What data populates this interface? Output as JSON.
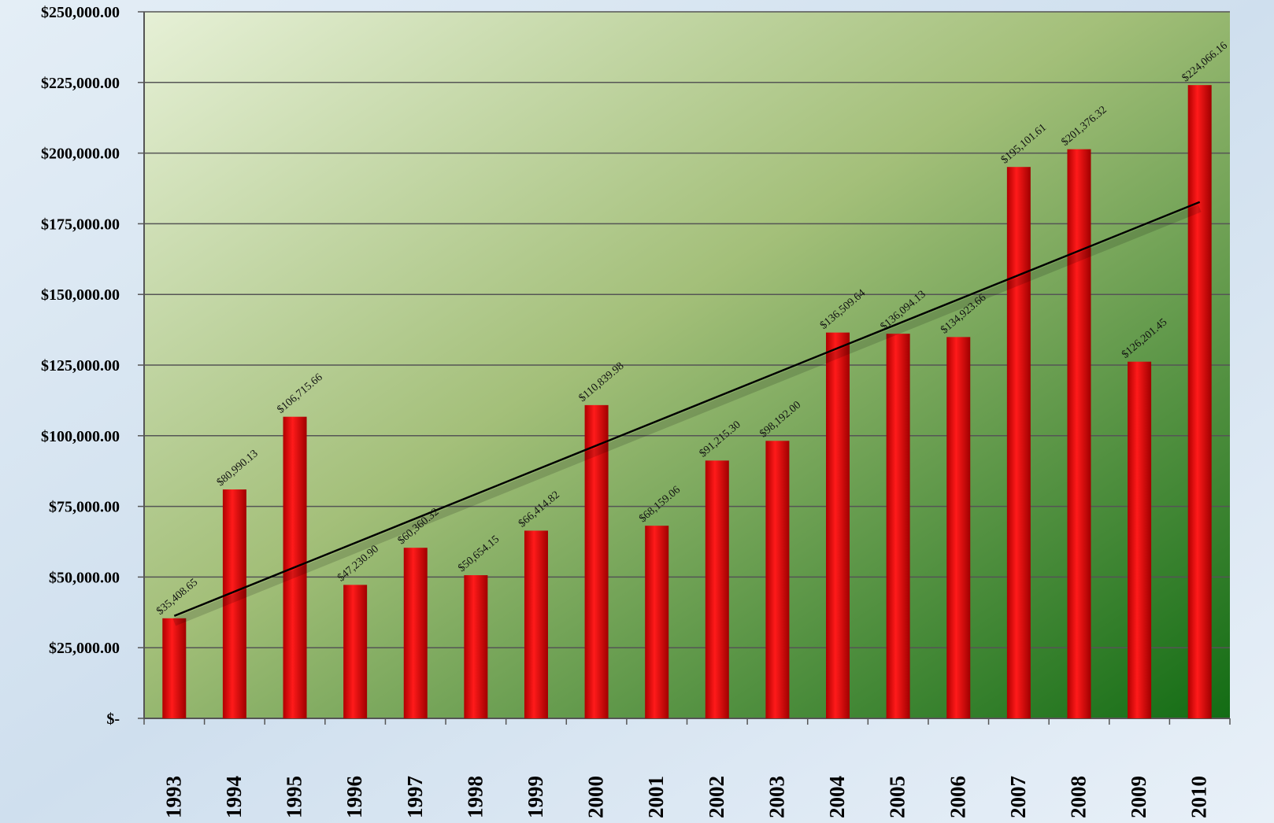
{
  "chart_data": {
    "type": "bar",
    "categories": [
      "1993",
      "1994",
      "1995",
      "1996",
      "1997",
      "1998",
      "1999",
      "2000",
      "2001",
      "2002",
      "2003",
      "2004",
      "2005",
      "2006",
      "2007",
      "2008",
      "2009",
      "2010"
    ],
    "values": [
      35408.65,
      80990.13,
      106715.66,
      47230.9,
      60360.32,
      50654.15,
      66414.82,
      110839.98,
      68159.06,
      91215.3,
      98192.0,
      136509.64,
      136094.13,
      134923.66,
      195101.61,
      201376.32,
      126201.45,
      224066.16
    ],
    "value_labels": [
      "$35,408.65",
      "$80,990.13",
      "$106,715.66",
      "$47,230.90",
      "$60,360.32",
      "$50,654.15",
      "$66,414.82",
      "$110,839.98",
      "$68,159.06",
      "$91,215.30",
      "$98,192.00",
      "$136,509.64",
      "$136,094.13",
      "$134,923.66",
      "$195,101.61",
      "$201,376.32",
      "$126,201.45",
      "$224,066.16"
    ],
    "color": "#ff0000",
    "trendline": true,
    "grid": true,
    "ylim": [
      0,
      250000
    ],
    "yticks": [
      {
        "value": 0,
        "label": "$-"
      },
      {
        "value": 25000,
        "label": "$25,000.00"
      },
      {
        "value": 50000,
        "label": "$50,000.00"
      },
      {
        "value": 75000,
        "label": "$75,000.00"
      },
      {
        "value": 100000,
        "label": "$100,000.00"
      },
      {
        "value": 125000,
        "label": "$125,000.00"
      },
      {
        "value": 150000,
        "label": "$150,000.00"
      },
      {
        "value": 175000,
        "label": "$175,000.00"
      },
      {
        "value": 200000,
        "label": "$200,000.00"
      },
      {
        "value": 225000,
        "label": "$225,000.00"
      },
      {
        "value": 250000,
        "label": "$250,000.00"
      }
    ]
  }
}
